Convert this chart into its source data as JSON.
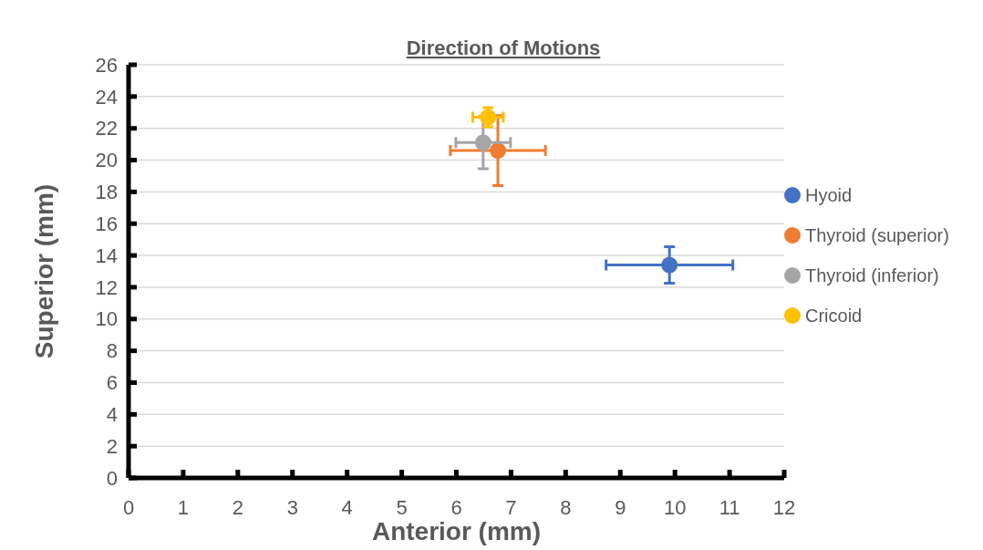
{
  "chart_data": {
    "type": "scatter",
    "title": "Direction of Motions",
    "xlabel": "Anterior (mm)",
    "ylabel": "Superior (mm)",
    "xlim": [
      0,
      12
    ],
    "xticks": [
      0,
      1,
      2,
      3,
      4,
      5,
      6,
      7,
      8,
      9,
      10,
      11,
      12
    ],
    "ylim": [
      0,
      26
    ],
    "yticks": [
      0,
      2,
      4,
      6,
      8,
      10,
      12,
      14,
      16,
      18,
      20,
      22,
      24,
      26
    ],
    "grid": "y",
    "legend": "right",
    "marker": "circle",
    "series": [
      {
        "name": "Hyoid",
        "color": "#4472c4",
        "x": [
          9.9
        ],
        "values": [
          13.4
        ],
        "errors": [
          1.15
        ],
        "xerrors": [
          1.16
        ]
      },
      {
        "name": "Thyroid (superior)",
        "color": "#ed7d31",
        "x": [
          6.76
        ],
        "values": [
          20.6
        ],
        "errors": [
          2.2
        ],
        "xerrors": [
          0.87
        ]
      },
      {
        "name": "Thyroid (inferior)",
        "color": "#a5a5a5",
        "x": [
          6.49
        ],
        "values": [
          21.1
        ],
        "errors": [
          1.65
        ],
        "xerrors": [
          0.5
        ]
      },
      {
        "name": "Cricoid",
        "color": "#ffc000",
        "x": [
          6.58
        ],
        "values": [
          22.7
        ],
        "errors": [
          0.6
        ],
        "xerrors": [
          0.28
        ]
      }
    ]
  }
}
